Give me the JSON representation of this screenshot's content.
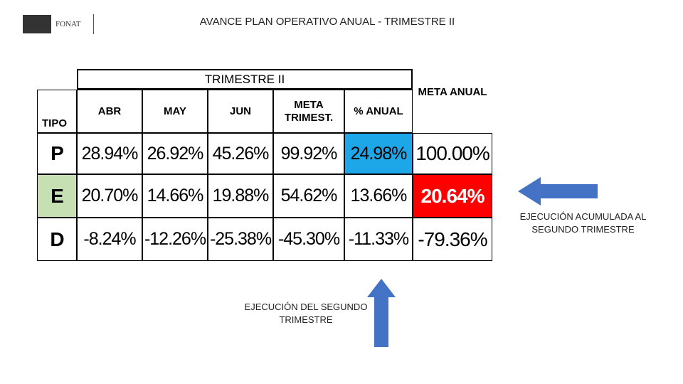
{
  "header": {
    "title": "AVANCE PLAN OPERATIVO ANUAL  - TRIMESTRE II",
    "logo_text": "FONAT"
  },
  "table": {
    "group_header": "TRIMESTRE II",
    "columns": [
      "TIPO",
      "ABR",
      "MAY",
      "JUN",
      "META TRIMEST.",
      "% ANUAL",
      "META ANUAL"
    ],
    "rows": [
      [
        "P",
        "28.94%",
        "26.92%",
        "45.26%",
        "99.92%",
        "24.98%",
        "100.00%"
      ],
      [
        "E",
        "20.70%",
        "14.66%",
        "19.88%",
        "54.62%",
        "13.66%",
        "20.64%"
      ],
      [
        "D",
        "-8.24%",
        "-12.26%",
        "-25.38%",
        "-45.30%",
        "-11.33%",
        "-79.36%"
      ]
    ]
  },
  "annotations": {
    "right": "EJECUCIÓN ACUMULADA AL SEGUNDO TRIMESTRE",
    "bottom": "EJECUCIÓN DEL SEGUNDO TRIMESTRE"
  }
}
